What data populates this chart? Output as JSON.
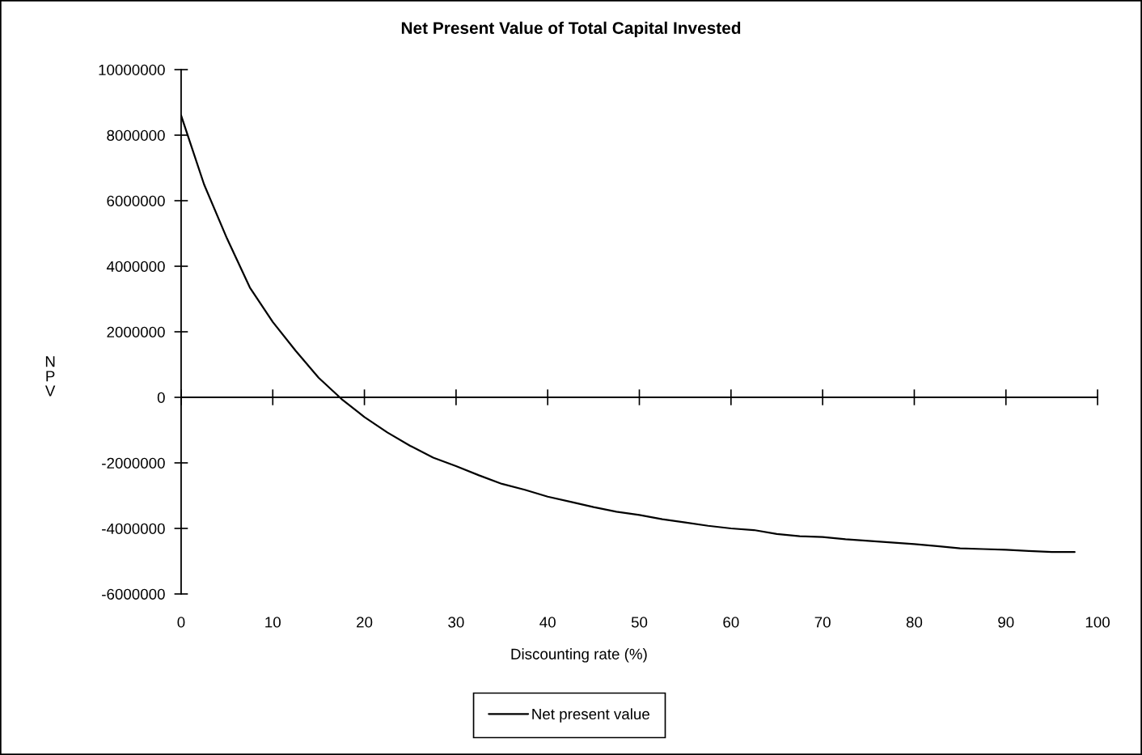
{
  "chart_data": {
    "type": "line",
    "title": "Net Present Value of Total Capital Invested",
    "xlabel": "Discounting rate (%)",
    "ylabel": "NPV",
    "x": [
      0,
      2.5,
      5,
      7.5,
      10,
      12.5,
      15,
      17.5,
      20,
      22.5,
      25,
      27.5,
      30,
      32.5,
      35,
      37.5,
      40,
      42.5,
      45,
      47.5,
      50,
      52.5,
      55,
      57.5,
      60,
      62.5,
      65,
      67.5,
      70,
      72.5,
      75,
      77.5,
      80,
      82.5,
      85,
      87.5,
      90,
      92.5,
      95,
      97.5
    ],
    "series": [
      {
        "name": "Net present value",
        "color": "#000000",
        "values": [
          8600000,
          6500000,
          4850000,
          3350000,
          2300000,
          1420000,
          600000,
          -50000,
          -600000,
          -1070000,
          -1480000,
          -1840000,
          -2100000,
          -2380000,
          -2640000,
          -2820000,
          -3030000,
          -3190000,
          -3350000,
          -3490000,
          -3590000,
          -3720000,
          -3820000,
          -3920000,
          -4000000,
          -4050000,
          -4170000,
          -4240000,
          -4260000,
          -4330000,
          -4380000,
          -4430000,
          -4480000,
          -4540000,
          -4610000,
          -4630000,
          -4650000,
          -4690000,
          -4720000,
          -4720000
        ]
      }
    ],
    "xlim": [
      0,
      100
    ],
    "ylim": [
      -6000000,
      10000000
    ],
    "xticks": [
      0,
      10,
      20,
      30,
      40,
      50,
      60,
      70,
      80,
      90,
      100
    ],
    "yticks": [
      -6000000,
      -4000000,
      -2000000,
      0,
      2000000,
      4000000,
      6000000,
      8000000,
      10000000
    ],
    "legend": "bottom"
  }
}
